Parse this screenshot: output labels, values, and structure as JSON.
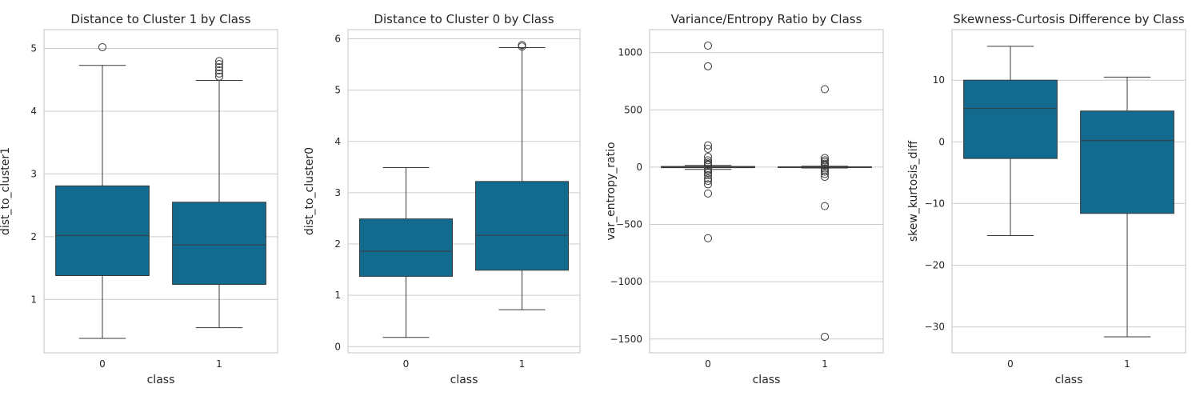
{
  "chart_data": [
    {
      "type": "box",
      "title": "Distance to Cluster 1 by Class",
      "xlabel": "class",
      "ylabel": "dist_to_cluster1",
      "categories": [
        "0",
        "1"
      ],
      "ylim": [
        0.15,
        5.3
      ],
      "yticks": [
        1,
        2,
        3,
        4,
        5
      ],
      "ytick_labels": [
        "1",
        "2",
        "3",
        "4",
        "5"
      ],
      "grid": true,
      "boxes": [
        {
          "category": "0",
          "whisker_low": 0.38,
          "q1": 1.38,
          "median": 2.02,
          "q3": 2.81,
          "whisker_high": 4.73,
          "outliers": [
            5.02
          ]
        },
        {
          "category": "1",
          "whisker_low": 0.55,
          "q1": 1.24,
          "median": 1.87,
          "q3": 2.55,
          "whisker_high": 4.49,
          "outliers": [
            4.55,
            4.6,
            4.65,
            4.7,
            4.75,
            4.8
          ]
        }
      ]
    },
    {
      "type": "box",
      "title": "Distance to Cluster 0 by Class",
      "xlabel": "class",
      "ylabel": "dist_to_cluster0",
      "categories": [
        "0",
        "1"
      ],
      "ylim": [
        -0.12,
        6.18
      ],
      "yticks": [
        0,
        1,
        2,
        3,
        4,
        5,
        6
      ],
      "ytick_labels": [
        "0",
        "1",
        "2",
        "3",
        "4",
        "5",
        "6"
      ],
      "grid": true,
      "boxes": [
        {
          "category": "0",
          "whisker_low": 0.18,
          "q1": 1.37,
          "median": 1.86,
          "q3": 2.49,
          "whisker_high": 3.49,
          "outliers": []
        },
        {
          "category": "1",
          "whisker_low": 0.72,
          "q1": 1.49,
          "median": 2.17,
          "q3": 3.22,
          "whisker_high": 5.83,
          "outliers": [
            5.85,
            5.88
          ]
        }
      ]
    },
    {
      "type": "box",
      "title": "Variance/Entropy Ratio by Class",
      "xlabel": "class",
      "ylabel": "var_entropy_ratio",
      "categories": [
        "0",
        "1"
      ],
      "ylim": [
        -1620,
        1200
      ],
      "yticks": [
        -1500,
        -1000,
        -500,
        0,
        500,
        1000
      ],
      "ytick_labels": [
        "−1500",
        "−1000",
        "−500",
        "0",
        "500",
        "1000"
      ],
      "grid": true,
      "boxes": [
        {
          "category": "0",
          "whisker_low": -20,
          "q1": -5,
          "median": 0,
          "q3": 6,
          "whisker_high": 15,
          "outliers": [
            1060,
            880,
            190,
            160,
            90,
            60,
            40,
            25,
            18,
            -18,
            -30,
            -50,
            -70,
            -100,
            -120,
            -150,
            -230,
            -620
          ]
        },
        {
          "category": "1",
          "whisker_low": -8,
          "q1": -3,
          "median": 0,
          "q3": 3,
          "whisker_high": 8,
          "outliers": [
            680,
            80,
            60,
            45,
            30,
            20,
            12,
            -12,
            -25,
            -40,
            -60,
            -85,
            -340,
            -1480
          ]
        }
      ]
    },
    {
      "type": "box",
      "title": "Skewness-Curtosis Difference by Class",
      "xlabel": "class",
      "ylabel": "skew_kurtosis_diff",
      "categories": [
        "0",
        "1"
      ],
      "ylim": [
        -34.2,
        18.2
      ],
      "yticks": [
        -30,
        -20,
        -10,
        0,
        10
      ],
      "ytick_labels": [
        "−30",
        "−20",
        "−10",
        "0",
        "10"
      ],
      "grid": true,
      "boxes": [
        {
          "category": "0",
          "whisker_low": -15.2,
          "q1": -2.7,
          "median": 5.4,
          "q3": 10.0,
          "whisker_high": 15.5,
          "outliers": []
        },
        {
          "category": "1",
          "whisker_low": -31.6,
          "q1": -11.6,
          "median": 0.2,
          "q3": 5.0,
          "whisker_high": 10.5,
          "outliers": []
        }
      ]
    }
  ],
  "colors": {
    "box_fill": "#136a8f",
    "line": "#3a3a3a",
    "grid": "#cccccc"
  }
}
